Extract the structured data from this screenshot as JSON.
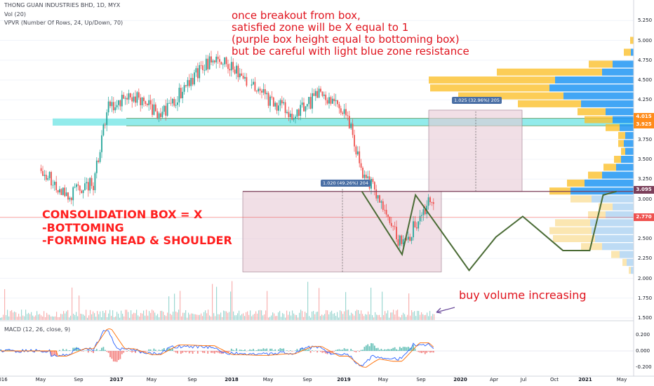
{
  "header": {
    "symbol_line": "THONG GUAN INDUSTRIES BHD, 1D, MYX",
    "vol_line": "Vol (20)",
    "vpvr_line": "VPVR (Number Of Rows, 24, Up/Down, 70)",
    "macd_line": "MACD (12, 26, close, 9)"
  },
  "annotations": {
    "breakout_text": [
      "once breakout from box,",
      "satisfied zone will be X equal to 1",
      "(purple box height equal to bottoming box)",
      "but be careful with light blue zone resistance"
    ],
    "consolidation_text": [
      "CONSOLIDATION BOX = X",
      "-BOTTOMING",
      "-FORMING HEAD & SHOULDER"
    ],
    "volume_text": "buy volume increasing",
    "measure_box_1": "1.020 (49.26%) 204",
    "measure_box_2": "1.025 (32.96%) 205"
  },
  "colors": {
    "annotation_red": "#e0141e",
    "consolidation_box": "#e8c9d6",
    "resistance_zone": "#7fe8e8",
    "pattern_line": "#4a6b35",
    "price_up": "#26a69a",
    "price_down": "#ef5350",
    "vpvr_up": "#b6d7f3",
    "vpvr_down": "#fbe3a8"
  },
  "price_axis": {
    "ticks": [
      "5.250",
      "5.000",
      "4.750",
      "4.500",
      "4.250",
      "4.000",
      "3.750",
      "3.500",
      "3.250",
      "3.000",
      "2.750",
      "2.500",
      "2.250",
      "2.000",
      "1.750",
      "1.500"
    ],
    "tag_1": "4.015",
    "tag_2": "3.925",
    "tag_3": "3.095",
    "tag_4": "2.770"
  },
  "macd_axis": {
    "ticks": [
      "0.200",
      "0.000",
      "-0.200"
    ]
  },
  "time_axis": {
    "labels": [
      "016",
      "May",
      "Sep",
      "2017",
      "May",
      "Sep",
      "2018",
      "May",
      "Sep",
      "2019",
      "May",
      "Sep",
      "2020",
      "Apr",
      "Jul",
      "Oct",
      "2021",
      "May"
    ]
  },
  "chart_data": {
    "type": "line",
    "title": "THONG GUAN INDUSTRIES BHD, 1D, MYX",
    "xlabel": "",
    "ylabel": "",
    "ylim": [
      1.5,
      5.35
    ],
    "x": [
      "2016-03",
      "2016-05",
      "2016-07",
      "2016-08",
      "2016-10",
      "2016-12",
      "2017-02",
      "2017-04",
      "2017-06",
      "2017-08",
      "2017-10",
      "2017-12",
      "2018-02",
      "2018-03",
      "2018-04",
      "2018-06",
      "2018-08",
      "2018-10",
      "2018-12",
      "2019-02",
      "2019-04",
      "2019-06",
      "2019-08",
      "2019-09",
      "2019-10"
    ],
    "series": [
      {
        "values": [
          3.4,
          3.05,
          3.2,
          4.15,
          4.3,
          4.05,
          4.45,
          4.8,
          4.55,
          4.25,
          4.05,
          4.35,
          4.0,
          3.35,
          3.1,
          2.4,
          2.95,
          2.4,
          2.15,
          2.55,
          2.65,
          2.55,
          2.4,
          2.7,
          3.0
        ]
      }
    ],
    "levels": {
      "resistance_zone": [
        3.925,
        4.015
      ],
      "breakout_line": 3.095,
      "box_bottom": 2.08,
      "target": 4.12,
      "red_line": 2.77
    },
    "head_and_shoulders_line": [
      {
        "x": "2018-03",
        "y": 3.095
      },
      {
        "x": "2018-06",
        "y": 2.3
      },
      {
        "x": "2018-07",
        "y": 3.05
      },
      {
        "x": "2018-11",
        "y": 2.1
      },
      {
        "x": "2019-01",
        "y": 2.52
      },
      {
        "x": "2019-03",
        "y": 2.78
      },
      {
        "x": "2019-06",
        "y": 2.35
      },
      {
        "x": "2019-08",
        "y": 2.35
      },
      {
        "x": "2019-09",
        "y": 3.05
      },
      {
        "x": "2019-10",
        "y": 3.095
      }
    ],
    "macd_ylim": [
      -0.28,
      0.32
    ]
  }
}
